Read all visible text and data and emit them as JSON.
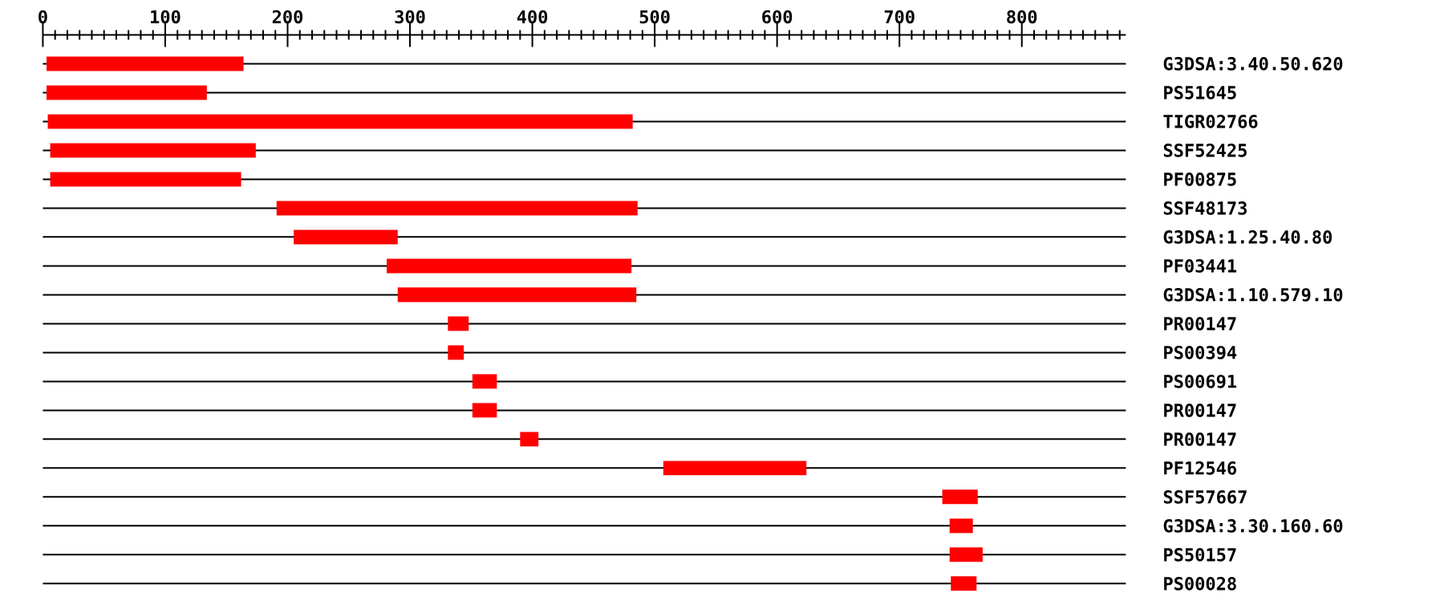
{
  "chart_data": {
    "type": "bar",
    "orientation": "horizontal",
    "categories": [
      "G3DSA:3.40.50.620",
      "PS51645",
      "TIGR02766",
      "SSF52425",
      "PF00875",
      "SSF48173",
      "G3DSA:1.25.40.80",
      "PF03441",
      "G3DSA:1.10.579.10",
      "PR00147",
      "PS00394",
      "PS00691",
      "PR00147",
      "PR00147",
      "PF12546",
      "SSF57667",
      "G3DSA:3.30.160.60",
      "PS50157",
      "PS00028"
    ],
    "base": [
      3,
      3,
      4,
      6,
      6,
      191,
      205,
      281,
      290,
      331,
      331,
      351,
      351,
      390,
      507,
      735,
      741,
      741,
      742
    ],
    "values": [
      161,
      131,
      478,
      168,
      156,
      295,
      85,
      200,
      195,
      17,
      13,
      20,
      20,
      15,
      117,
      29,
      19,
      27,
      21
    ],
    "color": "#ff0000",
    "xlim": [
      0,
      885
    ],
    "xticks": [
      0,
      {
        "value": 10,
        "label": null
      },
      {
        "value": 20,
        "label": null
      },
      {
        "value": 30,
        "label": null
      },
      {
        "value": 40,
        "label": null
      },
      {
        "value": 50,
        "label": null
      },
      {
        "value": 60,
        "label": null
      },
      {
        "value": 70,
        "label": null
      },
      {
        "value": 80,
        "label": null
      },
      {
        "value": 90,
        "label": null
      },
      100,
      {
        "value": 110,
        "label": null
      },
      {
        "value": 120,
        "label": null
      },
      {
        "value": 130,
        "label": null
      },
      {
        "value": 140,
        "label": null
      },
      {
        "value": 150,
        "label": null
      },
      {
        "value": 160,
        "label": null
      },
      {
        "value": 170,
        "label": null
      },
      {
        "value": 180,
        "label": null
      },
      {
        "value": 190,
        "label": null
      },
      200,
      {
        "value": 210,
        "label": null
      },
      {
        "value": 220,
        "label": null
      },
      {
        "value": 230,
        "label": null
      },
      {
        "value": 240,
        "label": null
      },
      {
        "value": 250,
        "label": null
      },
      {
        "value": 260,
        "label": null
      },
      {
        "value": 270,
        "label": null
      },
      {
        "value": 280,
        "label": null
      },
      {
        "value": 290,
        "label": null
      },
      300,
      {
        "value": 310,
        "label": null
      },
      {
        "value": 320,
        "label": null
      },
      {
        "value": 330,
        "label": null
      },
      {
        "value": 340,
        "label": null
      },
      {
        "value": 350,
        "label": null
      },
      {
        "value": 360,
        "label": null
      },
      {
        "value": 370,
        "label": null
      },
      {
        "value": 380,
        "label": null
      },
      {
        "value": 390,
        "label": null
      },
      400,
      {
        "value": 410,
        "label": null
      },
      {
        "value": 420,
        "label": null
      },
      {
        "value": 430,
        "label": null
      },
      {
        "value": 440,
        "label": null
      },
      {
        "value": 450,
        "label": null
      },
      {
        "value": 460,
        "label": null
      },
      {
        "value": 470,
        "label": null
      },
      {
        "value": 480,
        "label": null
      },
      {
        "value": 490,
        "label": null
      },
      500,
      {
        "value": 510,
        "label": null
      },
      {
        "value": 520,
        "label": null
      },
      {
        "value": 530,
        "label": null
      },
      {
        "value": 540,
        "label": null
      },
      {
        "value": 550,
        "label": null
      },
      {
        "value": 560,
        "label": null
      },
      {
        "value": 570,
        "label": null
      },
      {
        "value": 580,
        "label": null
      },
      {
        "value": 590,
        "label": null
      },
      600,
      {
        "value": 610,
        "label": null
      },
      {
        "value": 620,
        "label": null
      },
      {
        "value": 630,
        "label": null
      },
      {
        "value": 640,
        "label": null
      },
      {
        "value": 650,
        "label": null
      },
      {
        "value": 660,
        "label": null
      },
      {
        "value": 670,
        "label": null
      },
      {
        "value": 680,
        "label": null
      },
      {
        "value": 690,
        "label": null
      },
      700,
      {
        "value": 710,
        "label": null
      },
      {
        "value": 720,
        "label": null
      },
      {
        "value": 730,
        "label": null
      },
      {
        "value": 740,
        "label": null
      },
      {
        "value": 750,
        "label": null
      },
      {
        "value": 760,
        "label": null
      },
      {
        "value": 770,
        "label": null
      },
      {
        "value": 780,
        "label": null
      },
      {
        "value": 790,
        "label": null
      },
      800,
      {
        "value": 810,
        "label": null
      },
      {
        "value": 820,
        "label": null
      },
      {
        "value": 830,
        "label": null
      },
      {
        "value": 840,
        "label": null
      },
      {
        "value": 850,
        "label": null
      },
      {
        "value": 860,
        "label": null
      },
      {
        "value": 870,
        "label": null
      },
      {
        "value": 880,
        "label": null
      }
    ],
    "grid": "y"
  }
}
